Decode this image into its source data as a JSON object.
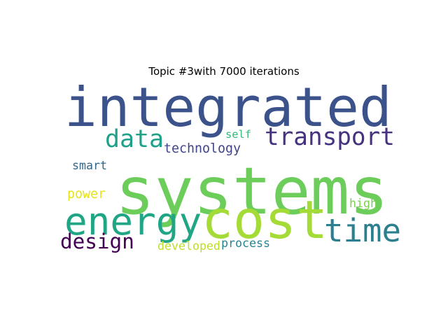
{
  "title": "Topic #3with 7000 iterations",
  "chart_data": {
    "type": "wordcloud",
    "title": "Topic #3with 7000 iterations",
    "words": [
      {
        "text": "systems",
        "weight": 1.0,
        "color": "#6ccd5a"
      },
      {
        "text": "integrated",
        "weight": 0.92,
        "color": "#3b528b"
      },
      {
        "text": "cost",
        "weight": 0.8,
        "color": "#a5db36"
      },
      {
        "text": "energy",
        "weight": 0.6,
        "color": "#21a685"
      },
      {
        "text": "time",
        "weight": 0.53,
        "color": "#2c7f8e"
      },
      {
        "text": "data",
        "weight": 0.4,
        "color": "#1fa088"
      },
      {
        "text": "transport",
        "weight": 0.4,
        "color": "#46327e"
      },
      {
        "text": "design",
        "weight": 0.32,
        "color": "#440154"
      },
      {
        "text": "technology",
        "weight": 0.21,
        "color": "#414487"
      },
      {
        "text": "smart",
        "weight": 0.18,
        "color": "#31688e"
      },
      {
        "text": "power",
        "weight": 0.18,
        "color": "#e6e419"
      },
      {
        "text": "self",
        "weight": 0.17,
        "color": "#35b779"
      },
      {
        "text": "high",
        "weight": 0.17,
        "color": "#7ad151"
      },
      {
        "text": "developed",
        "weight": 0.17,
        "color": "#bddf26"
      },
      {
        "text": "process",
        "weight": 0.17,
        "color": "#25858e"
      }
    ]
  }
}
